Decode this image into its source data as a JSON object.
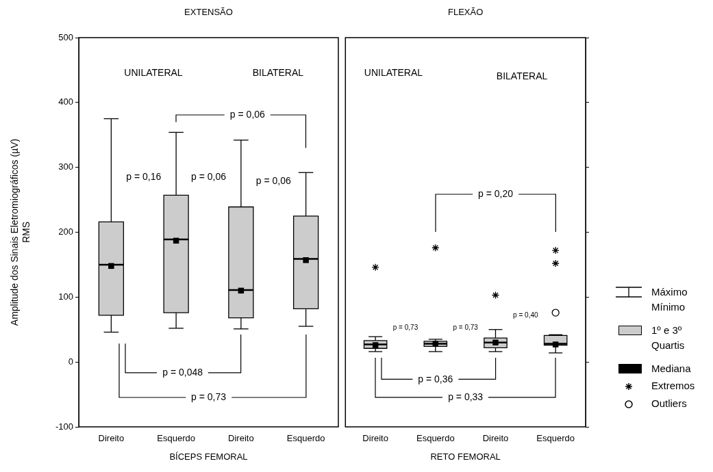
{
  "chart_data": [
    {
      "type": "box",
      "title": "EXTENSÃO",
      "xlabel": "BÍCEPS FEMORAL",
      "ylabel": "Amplitude dos Sinais Eletromiográficos (µV)\nRMS",
      "categories": [
        "Direito",
        "Esquerdo",
        "Direito",
        "Esquerdo"
      ],
      "ylim": [
        -100,
        500
      ],
      "yticks": [
        -100,
        0,
        100,
        200,
        300,
        400,
        500
      ],
      "grid": false,
      "annotations": [
        "UNILATERAL",
        "BILATERAL",
        "p = 0,06",
        "p = 0,16",
        "p = 0,06",
        "p = 0,06",
        "p = 0,048",
        "p = 0,73"
      ],
      "series": [
        {
          "color": "#cccccc",
          "boxes": [
            {
              "low": 46,
              "q1": 72,
              "median": 150,
              "q3": 216,
              "high": 375,
              "mean": 148
            },
            {
              "low": 52,
              "q1": 76,
              "median": 189,
              "q3": 257,
              "high": 354,
              "mean": 187
            },
            {
              "low": 51,
              "q1": 68,
              "median": 111,
              "q3": 239,
              "high": 342,
              "mean": 110
            },
            {
              "low": 55,
              "q1": 82,
              "median": 159,
              "q3": 225,
              "high": 292,
              "mean": 157
            }
          ]
        }
      ]
    },
    {
      "type": "box",
      "title": "FLEXÃO",
      "xlabel": "RETO FEMORAL",
      "categories": [
        "Direito",
        "Esquerdo",
        "Direito",
        "Esquerdo"
      ],
      "ylim": [
        -100,
        500
      ],
      "yticks": [
        -100,
        0,
        100,
        200,
        300,
        400,
        500
      ],
      "tick_labels": "x",
      "grid": false,
      "legend": "right",
      "annotations": [
        "UNILATERAL",
        "BILATERAL",
        "p = 0,20",
        "p = 0,73",
        "p = 0,73",
        "p = 0,40",
        "p = 0,36",
        "p = 0,33",
        "Máximo\nMínimo",
        "1º e 3º\nQuartis",
        "Mediana"
      ],
      "series": [
        {
          "color": "#cccccc",
          "boxes": [
            {
              "low": 16,
              "q1": 21,
              "median": 27,
              "q3": 33,
              "high": 39,
              "mean": 26
            },
            {
              "low": 16,
              "q1": 24,
              "median": 28,
              "q3": 32,
              "high": 35,
              "mean": 28
            },
            {
              "low": 16,
              "q1": 22,
              "median": 30,
              "q3": 37,
              "high": 50,
              "mean": 30
            },
            {
              "low": 14,
              "q1": 26,
              "median": 28,
              "q3": 41,
              "high": 42,
              "mean": 27
            }
          ]
        },
        {
          "type": "scatter",
          "name": "Extremos",
          "color": "#000000",
          "marker": "cross",
          "values": [
            146,
            176,
            103,
            172
          ]
        },
        {
          "type": "scatter",
          "color": "#000000",
          "marker": "cross",
          "values": [
            null,
            null,
            null,
            152
          ]
        },
        {
          "type": "scatter",
          "name": "Outliers",
          "color": "#000000",
          "marker": "circle",
          "values": [
            null,
            null,
            null,
            76
          ]
        }
      ]
    }
  ]
}
